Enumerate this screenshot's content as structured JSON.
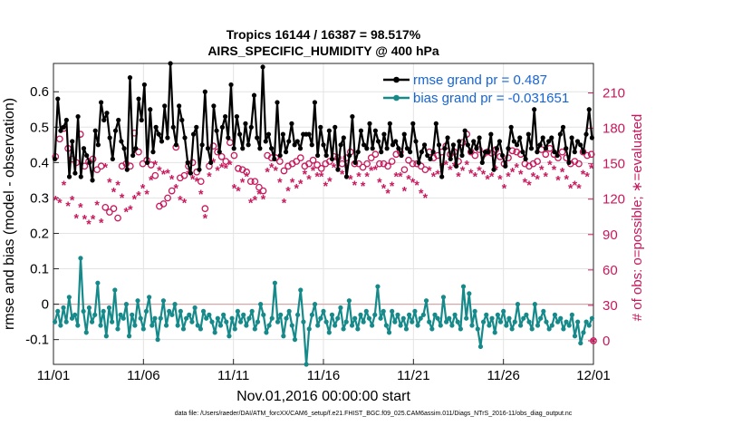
{
  "chart_data": {
    "type": "line",
    "title": "Tropics 16144 / 16387 = 98.517%",
    "subtitle": "AIRS_SPECIFIC_HUMIDITY @ 400 hPa",
    "xlabel": "Nov.01,2016 00:00:00 start",
    "ylabel": "rmse and bias (model - observation)",
    "ylabel_right": "# of obs: o=possible; ∗=evaluated",
    "footer": "data file: /Users/raeder/DAI/ATM_forcXX/CAM6_setup/f.e21.FHIST_BGC.f09_025.CAM6assim.011/Diags_NTrS_2016-11/obs_diag_output.nc",
    "ylim": [
      -0.17,
      0.68
    ],
    "ylim_right": [
      -20,
      235
    ],
    "xlim": [
      0,
      30
    ],
    "yticks": [
      "-0.1",
      "0",
      "0.1",
      "0.2",
      "0.3",
      "0.4",
      "0.5",
      "0.6"
    ],
    "yticks_right": [
      "0",
      "30",
      "60",
      "90",
      "120",
      "150",
      "180",
      "210"
    ],
    "xticks": [
      "11/01",
      "11/06",
      "11/11",
      "11/16",
      "11/21",
      "11/26",
      "12/01"
    ],
    "zero_line": 0,
    "legend_location": "top-right",
    "series": [
      {
        "name": "rmse grand pr = 0.487",
        "color": "#000000",
        "values": [
          0.41,
          0.58,
          0.49,
          0.5,
          0.52,
          0.36,
          0.46,
          0.37,
          0.53,
          0.36,
          0.44,
          0.42,
          0.4,
          0.35,
          0.49,
          0.45,
          0.57,
          0.52,
          0.54,
          0.47,
          0.41,
          0.49,
          0.52,
          0.46,
          0.44,
          0.38,
          0.64,
          0.42,
          0.44,
          0.58,
          0.52,
          0.62,
          0.4,
          0.55,
          0.43,
          0.5,
          0.48,
          0.46,
          0.56,
          0.47,
          0.68,
          0.5,
          0.45,
          0.56,
          0.52,
          0.47,
          0.4,
          0.37,
          0.48,
          0.5,
          0.38,
          0.45,
          0.6,
          0.44,
          0.4,
          0.56,
          0.49,
          0.43,
          0.5,
          0.53,
          0.47,
          0.62,
          0.44,
          0.53,
          0.48,
          0.44,
          0.51,
          0.45,
          0.5,
          0.59,
          0.47,
          0.44,
          0.67,
          0.46,
          0.48,
          0.44,
          0.41,
          0.57,
          0.42,
          0.48,
          0.43,
          0.46,
          0.51,
          0.45,
          0.46,
          0.44,
          0.48,
          0.48,
          0.48,
          0.45,
          0.57,
          0.42,
          0.5,
          0.45,
          0.42,
          0.49,
          0.41,
          0.5,
          0.38,
          0.45,
          0.47,
          0.36,
          0.42,
          0.53,
          0.4,
          0.43,
          0.49,
          0.45,
          0.44,
          0.51,
          0.44,
          0.49,
          0.46,
          0.43,
          0.48,
          0.44,
          0.51,
          0.45,
          0.46,
          0.44,
          0.42,
          0.48,
          0.44,
          0.43,
          0.51,
          0.46,
          0.4,
          0.43,
          0.45,
          0.42,
          0.41,
          0.43,
          0.51,
          0.45,
          0.36,
          0.44,
          0.47,
          0.41,
          0.45,
          0.39,
          0.46,
          0.42,
          0.49,
          0.45,
          0.43,
          0.46,
          0.44,
          0.47,
          0.4,
          0.43,
          0.43,
          0.48,
          0.38,
          0.44,
          0.46,
          0.42,
          0.39,
          0.44,
          0.5,
          0.46,
          0.45,
          0.47,
          0.43,
          0.41,
          0.48,
          0.44,
          0.55,
          0.43,
          0.45,
          0.47,
          0.44,
          0.46,
          0.47,
          0.43,
          0.42,
          0.48,
          0.5,
          0.44,
          0.4,
          0.47,
          0.43,
          0.46,
          0.45,
          0.43,
          0.48,
          0.55,
          0.47
        ]
      },
      {
        "name": "bias grand pr = -0.031651",
        "color": "#168a8a",
        "values": [
          -0.05,
          -0.02,
          -0.06,
          -0.01,
          -0.05,
          0.02,
          -0.04,
          -0.03,
          -0.06,
          0.13,
          -0.02,
          -0.08,
          -0.01,
          -0.05,
          -0.03,
          0.06,
          -0.06,
          -0.02,
          -0.09,
          -0.01,
          -0.05,
          0.04,
          -0.07,
          -0.03,
          -0.04,
          0.0,
          -0.09,
          -0.03,
          -0.06,
          0.01,
          -0.04,
          -0.07,
          -0.02,
          0.02,
          -0.06,
          -0.04,
          -0.1,
          -0.04,
          0.01,
          -0.06,
          -0.02,
          -0.03,
          0.0,
          -0.06,
          -0.02,
          -0.07,
          -0.04,
          -0.03,
          -0.05,
          -0.01,
          -0.06,
          -0.07,
          -0.02,
          -0.04,
          -0.03,
          -0.05,
          -0.08,
          -0.04,
          -0.06,
          -0.03,
          -0.05,
          -0.09,
          -0.04,
          -0.07,
          -0.02,
          -0.05,
          -0.03,
          -0.06,
          -0.04,
          -0.02,
          -0.07,
          -0.05,
          0.0,
          -0.03,
          -0.08,
          -0.06,
          -0.04,
          0.06,
          -0.05,
          -0.03,
          -0.09,
          -0.04,
          -0.02,
          -0.06,
          -0.1,
          -0.03,
          0.04,
          -0.05,
          -0.17,
          -0.07,
          -0.03,
          0.0,
          -0.06,
          -0.04,
          -0.02,
          -0.05,
          -0.08,
          -0.03,
          -0.06,
          -0.04,
          -0.01,
          -0.07,
          -0.05,
          0.01,
          -0.06,
          -0.04,
          -0.07,
          -0.03,
          -0.05,
          -0.02,
          -0.04,
          -0.06,
          -0.03,
          0.05,
          -0.04,
          -0.02,
          -0.06,
          -0.08,
          -0.02,
          -0.05,
          -0.03,
          -0.06,
          -0.04,
          -0.07,
          -0.03,
          -0.05,
          -0.02,
          -0.06,
          -0.04,
          -0.03,
          0.01,
          -0.05,
          -0.07,
          -0.03,
          -0.04,
          -0.06,
          0.02,
          -0.05,
          -0.04,
          -0.06,
          -0.03,
          -0.05,
          -0.07,
          0.05,
          -0.04,
          0.03,
          -0.06,
          -0.02,
          -0.07,
          -0.12,
          -0.05,
          -0.03,
          -0.06,
          -0.04,
          -0.08,
          -0.03,
          -0.05,
          -0.02,
          -0.06,
          -0.04,
          -0.07,
          -0.05,
          0.0,
          -0.06,
          -0.04,
          -0.03,
          -0.05,
          -0.07,
          0.0,
          -0.06,
          -0.04,
          -0.02,
          -0.05,
          -0.07,
          -0.06,
          -0.03,
          -0.05,
          -0.04,
          -0.07,
          -0.05,
          -0.06,
          -0.03,
          -0.09,
          -0.05,
          -0.11,
          -0.08,
          -0.05,
          -0.06,
          -0.04
        ]
      }
    ],
    "obs_possible": [
      156,
      171,
      180,
      163,
      154,
      151,
      175,
      148,
      152,
      154,
      145,
      148,
      113,
      109,
      112,
      104,
      148,
      150,
      148,
      176,
      160,
      150,
      153,
      149,
      140,
      114,
      116,
      121,
      127,
      164,
      138,
      140,
      148,
      151,
      143,
      135,
      112,
      148,
      165,
      160,
      156,
      152,
      168,
      157,
      146,
      145,
      143,
      135,
      135,
      130,
      127,
      157,
      155,
      155,
      152,
      144,
      148,
      150,
      152,
      155,
      148,
      150,
      153,
      149,
      146,
      150,
      152,
      156,
      155,
      150,
      155,
      160,
      150,
      150,
      147,
      150,
      155,
      158,
      150,
      150,
      148,
      152,
      158,
      160,
      145,
      153,
      150,
      150,
      148,
      145,
      160,
      155,
      157,
      160,
      165,
      158,
      160,
      152,
      168,
      175,
      160,
      157,
      162,
      158,
      160,
      159,
      162,
      156,
      150,
      155,
      161,
      160,
      158,
      150,
      148,
      150,
      152,
      162,
      158,
      163,
      158,
      155,
      160,
      155,
      150,
      152,
      150,
      160,
      157,
      158
    ],
    "obs_evaluated": [
      120,
      118,
      133,
      115,
      120,
      105,
      114,
      104,
      100,
      104,
      116,
      101,
      148,
      135,
      127,
      133,
      122,
      110,
      112,
      121,
      124,
      130,
      125,
      137,
      150,
      145,
      142,
      143,
      138,
      130,
      120,
      118,
      142,
      138,
      136,
      125,
      105,
      140,
      152,
      145,
      148,
      147,
      150,
      130,
      128,
      135,
      140,
      118,
      120,
      125,
      121,
      144,
      148,
      145,
      135,
      118,
      128,
      135,
      130,
      134,
      142,
      138,
      145,
      140,
      140,
      132,
      136,
      148,
      145,
      142,
      148,
      138,
      133,
      140,
      132,
      140,
      145,
      146,
      135,
      130,
      126,
      132,
      140,
      140,
      128,
      138,
      135,
      133,
      126,
      122,
      145,
      140,
      142,
      148,
      150,
      146,
      149,
      140,
      145,
      150,
      143,
      140,
      145,
      142,
      138,
      140,
      146,
      138,
      130,
      140,
      144,
      148,
      142,
      135,
      133,
      140,
      138,
      146,
      140,
      150,
      146,
      137,
      144,
      138,
      130,
      133,
      130,
      142,
      140,
      147
    ]
  }
}
